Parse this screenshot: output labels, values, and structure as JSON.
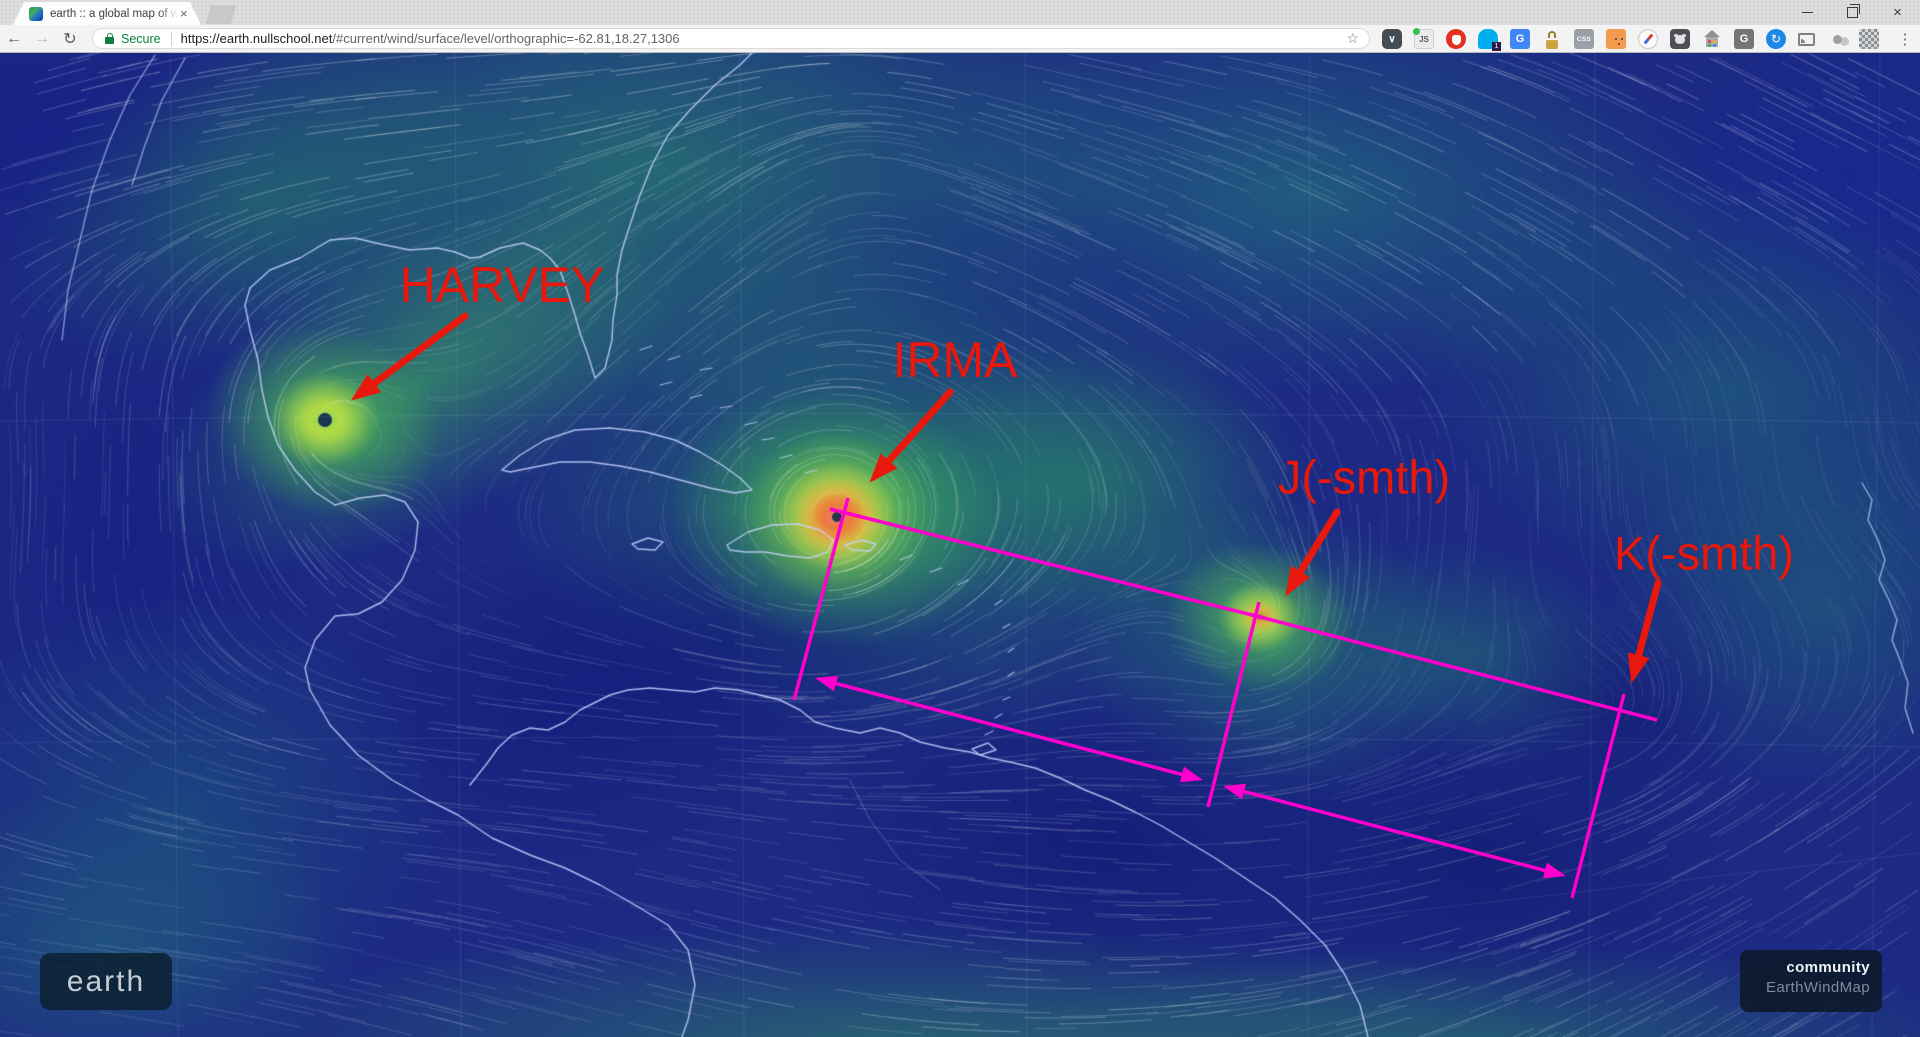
{
  "browser": {
    "tab": {
      "title": "earth :: a global map of w",
      "close_glyph": "×"
    },
    "window": {
      "close_glyph": "×"
    },
    "toolbar": {
      "back_glyph": "←",
      "forward_glyph": "→",
      "refresh_glyph": "↻",
      "secure_label": "Secure",
      "url_host": "https://earth.nullschool.net",
      "url_path": "/#current/wind/surface/level/orthographic=-62.81,18.27,1306",
      "bookmark_star_glyph": "☆",
      "menu_glyph": "⋮"
    },
    "extensions": {
      "pocket_glyph": "∨",
      "js_glyph": "JS",
      "ghostery_badge": "1",
      "translate_glyph": "G",
      "css_glyph": "CSS",
      "g_glyph": "G",
      "refresh_glyph": "↻"
    }
  },
  "map": {
    "storm_labels": [
      {
        "id": "harvey",
        "text": "HARVEY"
      },
      {
        "id": "irma",
        "text": "IRMA"
      },
      {
        "id": "j",
        "text": "J(-smth)"
      },
      {
        "id": "k",
        "text": "K(-smth)"
      }
    ],
    "hud": {
      "earth_button": "earth",
      "community_label": "community",
      "attribution": "EarthWindMap"
    },
    "colors": {
      "annotation_red": "#e8180c",
      "annotation_magenta": "#ff00cd",
      "secure_green": "#0b8043"
    }
  }
}
